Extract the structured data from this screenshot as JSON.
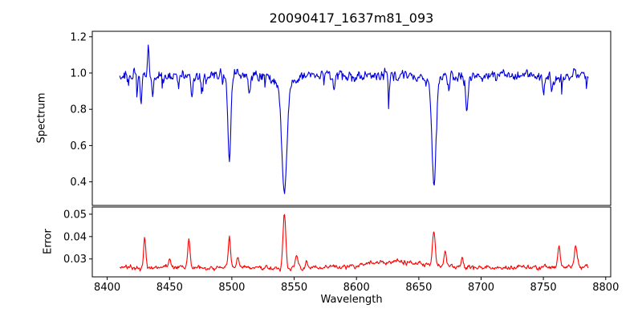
{
  "chart_data": {
    "type": "line",
    "title": "20090417_1637m81_093",
    "xlabel": "Wavelength",
    "legend": "none",
    "grid": false,
    "x_axis": {
      "lim": [
        8388,
        8804
      ],
      "ticks": [
        8400,
        8450,
        8500,
        8550,
        8600,
        8650,
        8700,
        8750,
        8800
      ]
    },
    "panels": [
      {
        "name": "spectrum",
        "ylabel": "Spectrum",
        "color": "#0000dd",
        "ylim": [
          0.27,
          1.23
        ],
        "yticks": [
          0.4,
          0.6,
          0.8,
          1.0,
          1.2
        ],
        "ytick_labels": [
          "0.4",
          "0.6",
          "0.8",
          "1.0",
          "1.2"
        ],
        "series": {
          "x_start": 8410,
          "x_end": 8786,
          "n_points": 740,
          "baseline": 0.985,
          "noise_sigma": 0.016,
          "spike_prob": 0.02,
          "spike_scale": 0.05,
          "features": [
            {
              "center": 8427.0,
              "amplitude": -0.13,
              "sigma": 0.7
            },
            {
              "center": 8433.0,
              "amplitude": 0.17,
              "sigma": 0.6
            },
            {
              "center": 8436.5,
              "amplitude": -0.1,
              "sigma": 0.7
            },
            {
              "center": 8468.0,
              "amplitude": -0.11,
              "sigma": 0.9
            },
            {
              "center": 8476.0,
              "amplitude": -0.09,
              "sigma": 0.8
            },
            {
              "center": 8498.0,
              "amplitude": -0.46,
              "sigma": 1.2
            },
            {
              "center": 8514.0,
              "amplitude": -0.1,
              "sigma": 0.9
            },
            {
              "center": 8542.1,
              "amplitude": -0.56,
              "sigma": 1.9
            },
            {
              "center": 8542.1,
              "amplitude": -0.09,
              "sigma": 6.0
            },
            {
              "center": 8582.0,
              "amplitude": -0.07,
              "sigma": 0.8
            },
            {
              "center": 8662.1,
              "amplitude": -0.55,
              "sigma": 1.6
            },
            {
              "center": 8662.1,
              "amplitude": -0.05,
              "sigma": 5.0
            },
            {
              "center": 8674.0,
              "amplitude": -0.1,
              "sigma": 0.8
            },
            {
              "center": 8688.5,
              "amplitude": -0.17,
              "sigma": 1.0
            },
            {
              "center": 8750.5,
              "amplitude": -0.1,
              "sigma": 0.8
            },
            {
              "center": 8757.0,
              "amplitude": -0.08,
              "sigma": 0.8
            }
          ]
        }
      },
      {
        "name": "error",
        "ylabel": "Error",
        "color": "#ff0000",
        "ylim": [
          0.022,
          0.0532
        ],
        "yticks": [
          0.03,
          0.04,
          0.05
        ],
        "ytick_labels": [
          "0.03",
          "0.04",
          "0.05"
        ],
        "series": {
          "x_start": 8410,
          "x_end": 8786,
          "n_points": 740,
          "baseline": 0.0262,
          "noise_sigma": 0.00055,
          "spike_prob": 0,
          "spike_scale": 0,
          "features": [
            {
              "center": 8430.0,
              "amplitude": 0.0135,
              "sigma": 0.9
            },
            {
              "center": 8450.0,
              "amplitude": 0.0035,
              "sigma": 0.9
            },
            {
              "center": 8465.5,
              "amplitude": 0.0125,
              "sigma": 0.9
            },
            {
              "center": 8498.0,
              "amplitude": 0.013,
              "sigma": 0.9
            },
            {
              "center": 8505.0,
              "amplitude": 0.0045,
              "sigma": 0.8
            },
            {
              "center": 8542.1,
              "amplitude": 0.024,
              "sigma": 1.1
            },
            {
              "center": 8552.0,
              "amplitude": 0.0055,
              "sigma": 0.9
            },
            {
              "center": 8560.0,
              "amplitude": 0.0035,
              "sigma": 0.8
            },
            {
              "center": 8630.0,
              "amplitude": 0.0026,
              "sigma": 22.0
            },
            {
              "center": 8662.1,
              "amplitude": 0.0155,
              "sigma": 1.1
            },
            {
              "center": 8671.0,
              "amplitude": 0.006,
              "sigma": 0.9
            },
            {
              "center": 8685.0,
              "amplitude": 0.004,
              "sigma": 0.9
            },
            {
              "center": 8762.5,
              "amplitude": 0.0095,
              "sigma": 1.0
            },
            {
              "center": 8776.0,
              "amplitude": 0.009,
              "sigma": 1.2
            }
          ]
        }
      }
    ]
  }
}
